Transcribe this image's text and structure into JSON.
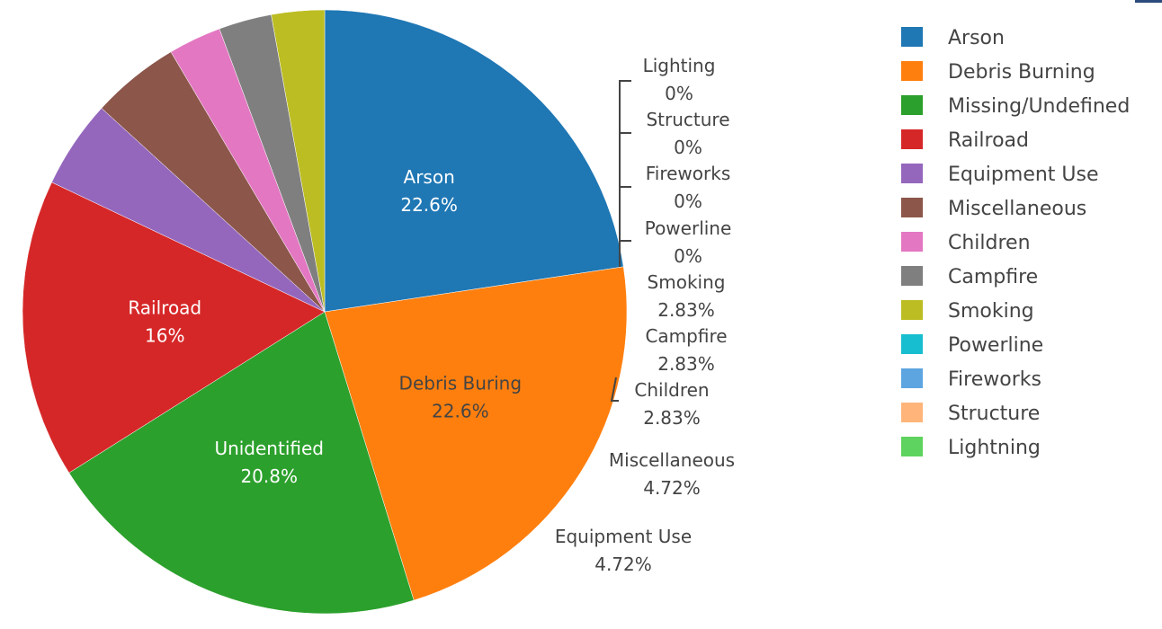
{
  "chart_data": {
    "type": "pie",
    "title": "",
    "slices": [
      {
        "label": "Arson",
        "percent": 22.6,
        "percent_text": "22.6%",
        "color": "#1f77b4"
      },
      {
        "label": "Debris Burning",
        "slice_text": "Debris Buring",
        "percent": 22.6,
        "percent_text": "22.6%",
        "color": "#ff7f0e"
      },
      {
        "label": "Missing/Undefined",
        "slice_text": "Unidentified",
        "percent": 20.8,
        "percent_text": "20.8%",
        "color": "#2ca02c"
      },
      {
        "label": "Railroad",
        "percent": 16.0,
        "percent_text": "16%",
        "color": "#d62728"
      },
      {
        "label": "Equipment Use",
        "percent": 4.72,
        "percent_text": "4.72%",
        "color": "#9467bd"
      },
      {
        "label": "Miscellaneous",
        "percent": 4.72,
        "percent_text": "4.72%",
        "color": "#8c564b"
      },
      {
        "label": "Children",
        "percent": 2.83,
        "percent_text": "2.83%",
        "color": "#e377c2"
      },
      {
        "label": "Campfire",
        "percent": 2.83,
        "percent_text": "2.83%",
        "color": "#7f7f7f"
      },
      {
        "label": "Smoking",
        "percent": 2.83,
        "percent_text": "2.83%",
        "color": "#bcbd22"
      },
      {
        "label": "Powerline",
        "percent": 0,
        "percent_text": "0%",
        "color": "#17becf"
      },
      {
        "label": "Fireworks",
        "percent": 0,
        "percent_text": "0%",
        "color": "#5da5e0"
      },
      {
        "label": "Structure",
        "percent": 0,
        "percent_text": "0%",
        "color": "#ffb57a"
      },
      {
        "label": "Lightning",
        "slice_text": "Lighting",
        "percent": 0,
        "percent_text": "0%",
        "color": "#5fd35f"
      }
    ],
    "legend_position": "right"
  }
}
